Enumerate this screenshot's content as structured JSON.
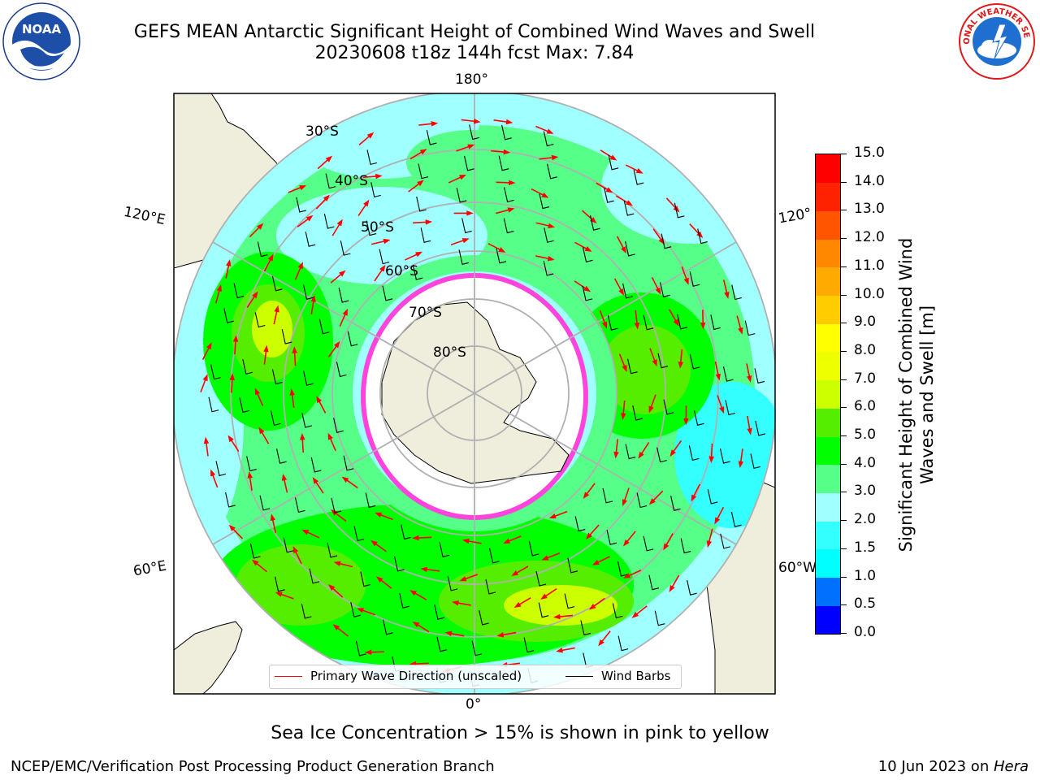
{
  "title": {
    "line1": "GEFS MEAN Antarctic Significant Height of Combined Wind Waves and Swell",
    "line2": "20230608 t18z 144h fcst   Max: 7.84"
  },
  "map": {
    "lon_labels": {
      "top": "180°",
      "bottom": "0°",
      "left_upper": "120°E",
      "left_lower": "60°E",
      "right_upper": "120°",
      "right_lower": "60°W"
    },
    "lat_labels": [
      "30°S",
      "40°S",
      "50°S",
      "60°S",
      "70°S",
      "80°S"
    ],
    "legend": {
      "wave_dir": "Primary Wave Direction (unscaled)",
      "wind_barbs": "Wind Barbs",
      "wave_color": "#ff0000",
      "barb_color": "#000000"
    }
  },
  "colorbar": {
    "label": "Significant Height of Combined Wind Waves and Swell [m]",
    "ticks": [
      "0.0",
      "0.5",
      "1.0",
      "1.5",
      "2.0",
      "3.0",
      "4.0",
      "5.0",
      "6.0",
      "7.0",
      "8.0",
      "9.0",
      "10.0",
      "11.0",
      "12.0",
      "13.0",
      "14.0",
      "15.0"
    ],
    "colors": [
      "#0000ff",
      "#0070ff",
      "#00ffff",
      "#33ffff",
      "#a0ffff",
      "#55ff88",
      "#00ff00",
      "#55ee00",
      "#ccff00",
      "#eeff00",
      "#ffff00",
      "#ffcc00",
      "#ffaa00",
      "#ff8800",
      "#ff5500",
      "#ff2200",
      "#ff0000"
    ]
  },
  "seaice_note": "Sea Ice Concentration > 15% is shown in pink to yellow",
  "footer": {
    "left": "NCEP/EMC/Verification Post Processing Product Generation Branch",
    "right_prefix": "10 Jun 2023 on ",
    "right_italic": "Hera"
  },
  "logos": {
    "left": "NOAA",
    "right": "NATIONAL WEATHER SERVICE"
  }
}
